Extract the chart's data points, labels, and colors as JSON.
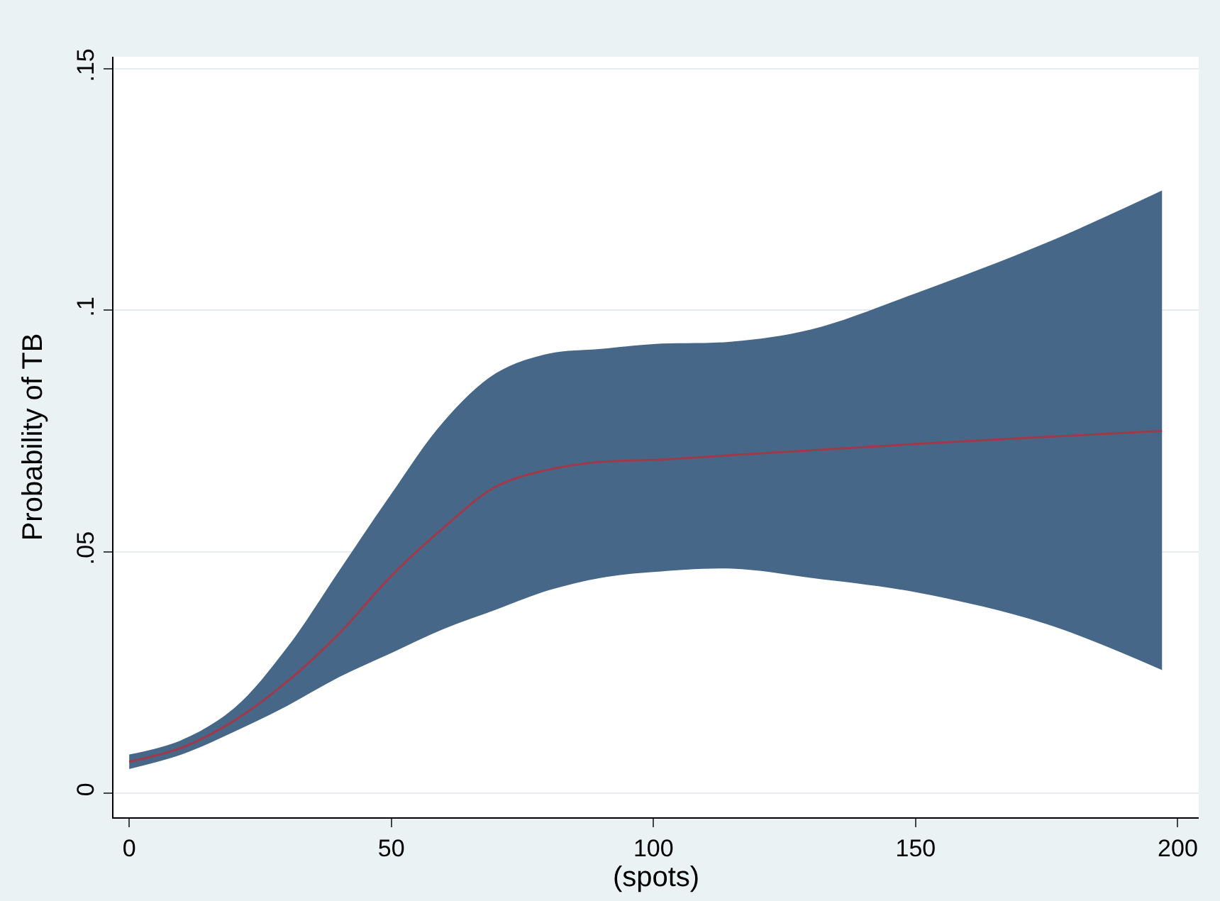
{
  "chart_data": {
    "type": "line",
    "xlabel": "(spots)",
    "ylabel": "Probability of TB",
    "x": [
      0,
      10,
      20,
      30,
      40,
      50,
      60,
      70,
      80,
      90,
      100,
      115,
      130,
      150,
      175,
      197
    ],
    "series": [
      {
        "color": "#476788",
        "values": [
          null,
          null,
          null,
          null,
          null,
          null,
          null,
          null,
          null,
          null,
          null,
          null,
          null,
          null,
          null,
          null
        ],
        "lower": [
          0.005,
          0.008,
          0.0127,
          0.018,
          0.024,
          0.029,
          0.034,
          0.038,
          0.042,
          0.0446,
          0.0458,
          0.0465,
          0.0446,
          0.0416,
          0.035,
          0.0255
        ],
        "upper": [
          0.008,
          0.011,
          0.0176,
          0.03,
          0.046,
          0.062,
          0.077,
          0.087,
          0.091,
          0.092,
          0.093,
          0.0935,
          0.096,
          0.1035,
          0.114,
          0.1248
        ]
      },
      {
        "color": "#a03a4a",
        "values": [
          0.0065,
          0.0094,
          0.015,
          0.023,
          0.033,
          0.045,
          0.055,
          0.0635,
          0.067,
          0.0686,
          0.069,
          0.07,
          0.071,
          0.0723,
          0.0738,
          0.075
        ]
      }
    ],
    "xlim": [
      -3,
      204
    ],
    "xticks": [
      0,
      50,
      100,
      150,
      200
    ],
    "ylim": [
      -0.005,
      0.1525
    ],
    "yticks": [
      {
        "value": 0,
        "label": "0"
      },
      {
        "value": 0.05,
        "label": ".05"
      },
      {
        "value": 0.1,
        "label": ".1"
      },
      {
        "value": 0.15,
        "label": ".15"
      }
    ],
    "grid": "y",
    "line_style": "solid",
    "marker": "none"
  }
}
